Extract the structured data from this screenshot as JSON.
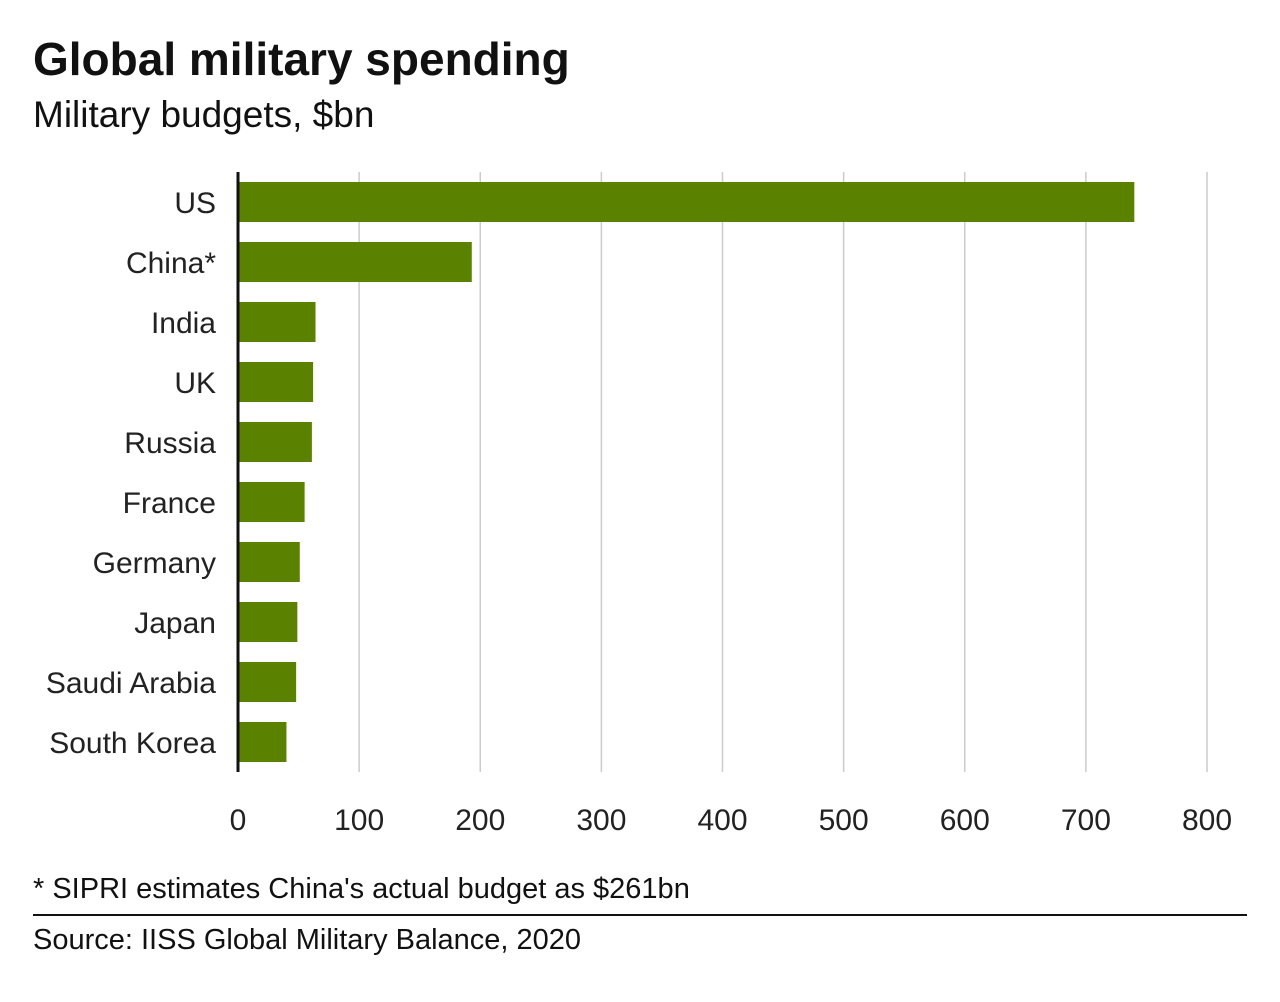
{
  "chart_data": {
    "type": "bar",
    "orientation": "horizontal",
    "title": "Global military spending",
    "subtitle": "Military budgets, $bn",
    "categories": [
      "US",
      "China*",
      "India",
      "UK",
      "Russia",
      "France",
      "Germany",
      "Japan",
      "Saudi Arabia",
      "South Korea"
    ],
    "values": [
      740,
      193,
      64,
      62,
      61,
      55,
      51,
      49,
      48,
      40
    ],
    "xlim": [
      0,
      800
    ],
    "xticks": [
      0,
      100,
      200,
      300,
      400,
      500,
      600,
      700,
      800
    ],
    "grid": "vertical",
    "bar_color": "#5a8200",
    "grid_color": "#cccccc",
    "axis_color": "#111111"
  },
  "footnote": "* SIPRI estimates China's actual budget as $261bn",
  "source": "Source: IISS Global Military Balance, 2020"
}
